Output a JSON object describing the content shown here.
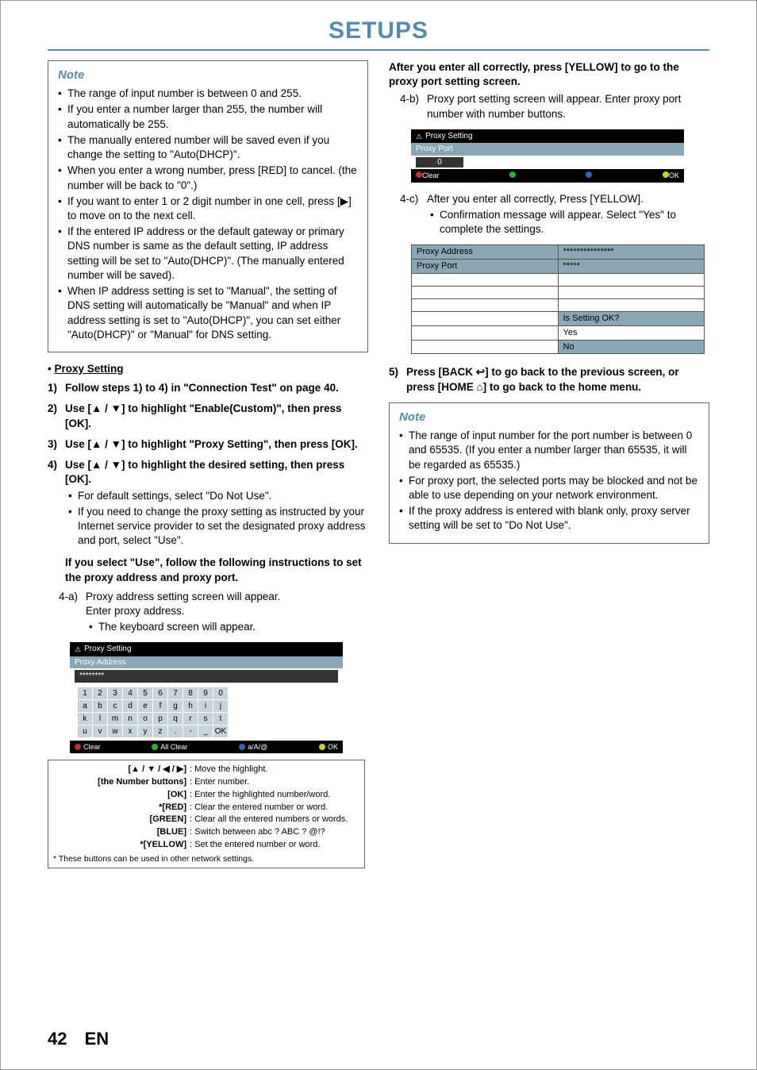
{
  "header": {
    "title": "SETUPS"
  },
  "left": {
    "note_title": "Note",
    "note_items": [
      "The range of input number is between 0 and 255.",
      "If you enter a number larger than 255, the number will automatically be 255.",
      "The manually entered number will be saved even if you change the setting to \"Auto(DHCP)\".",
      "When you enter a wrong number, press [RED] to cancel. (the number will be back to \"0\".)",
      "If you want to enter 1 or 2 digit number in one cell, press [▶] to move on to the next cell.",
      "If the entered IP address or the default gateway or primary DNS number is same as the default setting, IP address setting will be set to \"Auto(DHCP)\". (The manually entered number will be saved).",
      "When IP address setting is set to \"Manual\", the setting of DNS setting will automatically be \"Manual\" and when IP address setting is set to \"Auto(DHCP)\", you can set either \"Auto(DHCP)\" or \"Manual\" for DNS setting."
    ],
    "proxy_heading": "Proxy Setting",
    "step1": "Follow steps 1) to 4) in \"Connection Test\" on page 40.",
    "step2": "Use [▲ / ▼] to highlight \"Enable(Custom)\", then press [OK].",
    "step3": "Use [▲ / ▼] to highlight \"Proxy Setting\", then press [OK].",
    "step4": "Use [▲ / ▼] to highlight the desired setting, then press [OK].",
    "step4_bullets": [
      "For default settings, select \"Do Not Use\".",
      "If you need to change the proxy setting as instructed by your Internet service provider to set the designated proxy address and port, select \"Use\"."
    ],
    "step4_followup": "If you select \"Use\", follow the following instructions to set the proxy address and proxy port.",
    "sub4a_label": "4-a)",
    "sub4a_line1": "Proxy address setting screen will appear.",
    "sub4a_line2": "Enter proxy address.",
    "sub4a_bullet": "The keyboard screen will appear.",
    "kbd": {
      "title": "Proxy Setting",
      "subtitle": "Proxy Address",
      "field": "********",
      "keys": [
        "1",
        "2",
        "3",
        "4",
        "5",
        "6",
        "7",
        "8",
        "9",
        "0",
        "a",
        "b",
        "c",
        "d",
        "e",
        "f",
        "g",
        "h",
        "i",
        "j",
        "k",
        "l",
        "m",
        "n",
        "o",
        "p",
        "q",
        "r",
        "s",
        "t",
        "u",
        "v",
        "w",
        "x",
        "y",
        "z",
        ".",
        "-",
        "_",
        "OK"
      ],
      "footer_clear": "Clear",
      "footer_allclear": "All Clear",
      "footer_mode": "a/A/@",
      "footer_ok": "OK"
    },
    "legend": [
      {
        "k": "[▲ / ▼ / ◀ / ▶]",
        "v": ": Move the highlight."
      },
      {
        "k": "[the Number buttons]",
        "v": ": Enter number."
      },
      {
        "k": "[OK]",
        "v": ": Enter the highlighted number/word."
      },
      {
        "k": "*[RED]",
        "v": ": Clear the entered number or word."
      },
      {
        "k": "[GREEN]",
        "v": ": Clear all the entered numbers or words."
      },
      {
        "k": "[BLUE]",
        "v": ": Switch between abc ? ABC ? @!?"
      },
      {
        "k": "*[YELLOW]",
        "v": ": Set the entered number or word."
      }
    ],
    "legend_foot": "* These buttons can be used in other network settings."
  },
  "right": {
    "top_bold": "After you enter all correctly, press [YELLOW] to go to the proxy port setting screen.",
    "sub4b_label": "4-b)",
    "sub4b_text": "Proxy port setting screen will appear. Enter proxy port number with number buttons.",
    "pp": {
      "title": "Proxy Setting",
      "subtitle": "Proxy Port",
      "value": "0",
      "footer_clear": "Clear",
      "footer_ok": "OK"
    },
    "sub4c_label": "4-c)",
    "sub4c_text": "After you enter all correctly, Press [YELLOW].",
    "sub4c_bullet": "Confirmation message will appear. Select \"Yes\" to complete the settings.",
    "confirm": {
      "rows": [
        [
          "Proxy Address",
          "***************"
        ],
        [
          "Proxy Port",
          "*****"
        ],
        [
          "",
          ""
        ],
        [
          "",
          ""
        ],
        [
          "",
          ""
        ],
        [
          "",
          "Is Setting OK?"
        ],
        [
          "",
          "Yes"
        ],
        [
          "",
          "No"
        ]
      ]
    },
    "step5": "Press [BACK ↩] to go back to the previous screen, or press [HOME ⌂] to go back to the home menu.",
    "note_title": "Note",
    "note_items": [
      "The range of input number for the port number is between 0 and 65535.  (If you enter a number larger than 65535, it will be regarded as 65535.)",
      "For proxy port, the selected ports may be blocked and not be able to use depending on  your network environment.",
      "If the proxy address is entered with blank only, proxy server setting will be set to \"Do Not Use\"."
    ]
  },
  "footer": {
    "page": "42",
    "lang": "EN"
  }
}
